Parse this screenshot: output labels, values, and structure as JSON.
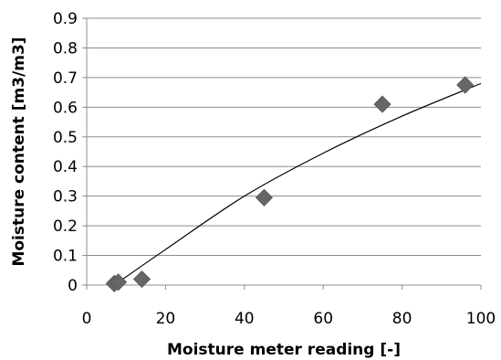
{
  "chart_data": {
    "type": "scatter",
    "xlabel": "Moisture meter reading [-]",
    "ylabel": "Moisture content [m3/m3]",
    "xlim": [
      0,
      100
    ],
    "ylim": [
      0,
      0.9
    ],
    "xticks": [
      "0",
      "20",
      "40",
      "60",
      "80",
      "100"
    ],
    "yticks": [
      "0",
      "0.1",
      "0.2",
      "0.3",
      "0.4",
      "0.5",
      "0.6",
      "0.7",
      "0.8",
      "0.9"
    ],
    "grid": "horizontal",
    "legend": "none",
    "marker": "diamond",
    "marker_color": "#666666",
    "series": [
      {
        "points": [
          {
            "x": 7,
            "y": 0.005
          },
          {
            "x": 8,
            "y": 0.01
          },
          {
            "x": 14,
            "y": 0.02
          },
          {
            "x": 45,
            "y": 0.295
          },
          {
            "x": 75,
            "y": 0.61
          },
          {
            "x": 96,
            "y": 0.675
          }
        ]
      }
    ],
    "trendline": {
      "type": "curve",
      "points": [
        {
          "x": 7,
          "y": 0.0
        },
        {
          "x": 20,
          "y": 0.12
        },
        {
          "x": 40,
          "y": 0.3
        },
        {
          "x": 60,
          "y": 0.445
        },
        {
          "x": 80,
          "y": 0.57
        },
        {
          "x": 100,
          "y": 0.68
        }
      ]
    }
  }
}
